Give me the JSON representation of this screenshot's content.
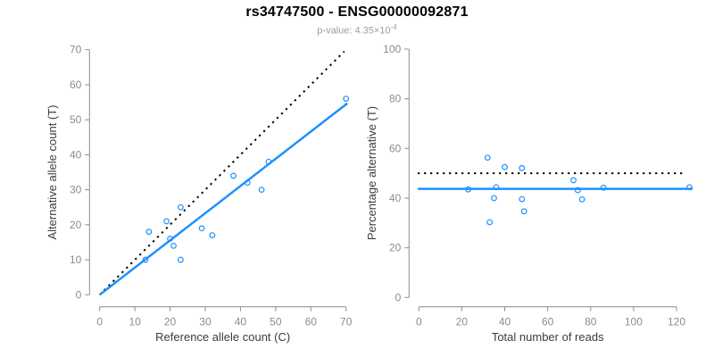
{
  "header": {
    "title": "rs34747500 - ENSG00000092871",
    "subtitle_prefix": "p-value: 4.35×10",
    "subtitle_exponent": "-4"
  },
  "colors": {
    "accent": "#1E90FF",
    "reference_line": "#000000",
    "axis": "#8C8C8C",
    "tick_label": "#8C8C8C",
    "axis_title": "#3C3C3C",
    "title": "#000000",
    "subtitle": "#9E9E9E",
    "background": "#FFFFFF"
  },
  "chart_data": [
    {
      "id": "allele-counts",
      "type": "scatter",
      "xlabel": "Reference allele count (C)",
      "ylabel": "Alternative allele count (T)",
      "xlim": [
        0,
        70
      ],
      "ylim": [
        0,
        70
      ],
      "xticks": [
        0,
        10,
        20,
        30,
        40,
        50,
        60,
        70
      ],
      "yticks": [
        0,
        10,
        20,
        30,
        40,
        50,
        60,
        70
      ],
      "grid": false,
      "legend": "none",
      "marker": "open-circle",
      "points": [
        [
          13,
          10
        ],
        [
          14,
          18
        ],
        [
          19,
          21
        ],
        [
          20,
          16
        ],
        [
          21,
          14
        ],
        [
          23,
          10
        ],
        [
          23,
          25
        ],
        [
          29,
          19
        ],
        [
          32,
          17
        ],
        [
          38,
          34
        ],
        [
          42,
          32
        ],
        [
          46,
          30
        ],
        [
          48,
          38
        ],
        [
          70,
          56
        ]
      ],
      "lines": [
        {
          "name": "identity-line",
          "style": "dotted",
          "color": "#000000",
          "width": 2,
          "from": [
            0,
            0
          ],
          "to": [
            69.5,
            69.5
          ]
        },
        {
          "name": "fit-line",
          "style": "solid",
          "color": "#1E90FF",
          "width": 2.5,
          "from": [
            0,
            0
          ],
          "to": [
            70.4,
            54.7
          ]
        }
      ]
    },
    {
      "id": "percentage-by-reads",
      "type": "scatter",
      "xlabel": "Total number of reads",
      "ylabel": "Percentage alternative (T)",
      "xlim": [
        0,
        126
      ],
      "ylim": [
        0,
        100
      ],
      "xticks": [
        0,
        20,
        40,
        60,
        80,
        100,
        120
      ],
      "yticks": [
        0,
        20,
        40,
        60,
        80,
        100
      ],
      "grid": false,
      "legend": "none",
      "marker": "open-circle",
      "points": [
        [
          23,
          43.5
        ],
        [
          32,
          56.3
        ],
        [
          33,
          30.3
        ],
        [
          35,
          40.0
        ],
        [
          36,
          44.4
        ],
        [
          40,
          52.5
        ],
        [
          48,
          52.1
        ],
        [
          48,
          39.6
        ],
        [
          49,
          34.7
        ],
        [
          72,
          47.2
        ],
        [
          74,
          43.2
        ],
        [
          76,
          39.5
        ],
        [
          86,
          44.2
        ],
        [
          126,
          44.4
        ]
      ],
      "lines": [
        {
          "name": "fifty-percent-line",
          "style": "dotted",
          "color": "#000000",
          "width": 2,
          "from": [
            -0.5,
            50
          ],
          "to": [
            124.3,
            50
          ]
        },
        {
          "name": "mean-line",
          "style": "solid",
          "color": "#1E90FF",
          "width": 2.5,
          "from": [
            -0.5,
            43.7
          ],
          "to": [
            127.5,
            43.7
          ]
        }
      ]
    }
  ]
}
